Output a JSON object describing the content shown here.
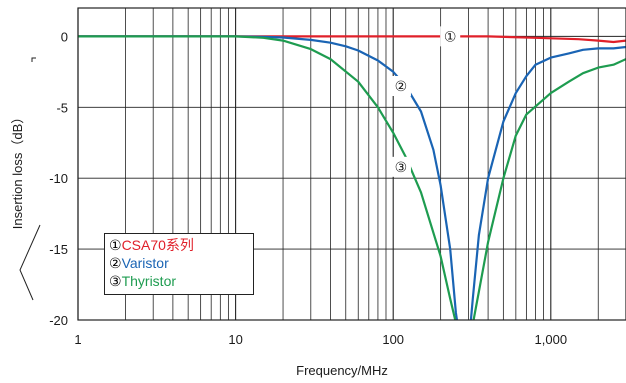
{
  "chart_data": {
    "type": "line",
    "xlabel": "Frequency/MHz",
    "ylabel": "Insertion loss（dB）",
    "xscale": "log",
    "xlim": [
      1,
      3000
    ],
    "ylim": [
      -20,
      2
    ],
    "xticks": [
      {
        "value": 1,
        "label": "1"
      },
      {
        "value": 10,
        "label": "10"
      },
      {
        "value": 100,
        "label": "100"
      },
      {
        "value": 1000,
        "label": "1,000"
      }
    ],
    "yticks": [
      {
        "value": 0,
        "label": "0"
      },
      {
        "value": -5,
        "label": "-5"
      },
      {
        "value": -10,
        "label": "-10"
      },
      {
        "value": -15,
        "label": "-15"
      },
      {
        "value": -20,
        "label": "-20"
      }
    ],
    "grid": true,
    "legend_position": "bottom-left",
    "series": [
      {
        "marker": "①",
        "name": "CSA70系列",
        "color": "#e0202a",
        "x": [
          1,
          10,
          100,
          200,
          400,
          800,
          1500,
          2000,
          2500,
          3000
        ],
        "y": [
          0,
          0,
          0,
          0,
          0,
          -0.1,
          -0.2,
          -0.3,
          -0.4,
          -0.3
        ]
      },
      {
        "marker": "②",
        "name": "Varistor",
        "color": "#1a64b4",
        "x": [
          1,
          10,
          15,
          20,
          30,
          40,
          50,
          60,
          80,
          100,
          120,
          150,
          180,
          200,
          230,
          250,
          270,
          300,
          320,
          350,
          400,
          500,
          600,
          700,
          800,
          1000,
          1300,
          1600,
          2000,
          2500,
          3000
        ],
        "y": [
          0,
          0,
          -0.03,
          -0.08,
          -0.25,
          -0.45,
          -0.7,
          -1.0,
          -1.7,
          -2.5,
          -3.5,
          -5.3,
          -8.0,
          -10.5,
          -15.0,
          -19.5,
          -22,
          -22,
          -18.5,
          -14.0,
          -10.0,
          -6.0,
          -4.0,
          -2.8,
          -2.0,
          -1.5,
          -1.2,
          -0.95,
          -0.85,
          -0.85,
          -0.75
        ]
      },
      {
        "marker": "③",
        "name": "Thyristor",
        "color": "#1e9c50",
        "x": [
          1,
          10,
          15,
          20,
          30,
          40,
          60,
          80,
          100,
          120,
          150,
          200,
          230,
          260,
          280,
          300,
          330,
          350,
          400,
          500,
          600,
          700,
          1000,
          1300,
          1600,
          2000,
          2500,
          3000
        ],
        "y": [
          0,
          0,
          -0.1,
          -0.3,
          -0.9,
          -1.6,
          -3.2,
          -5.0,
          -6.8,
          -8.5,
          -11.0,
          -15.5,
          -18.5,
          -21,
          -22,
          -22,
          -19.5,
          -18.0,
          -14.5,
          -10.0,
          -7.0,
          -5.5,
          -4.0,
          -3.2,
          -2.6,
          -2.2,
          -2.0,
          -1.6
        ]
      }
    ],
    "annotations": [
      {
        "text": "①",
        "x": 230,
        "y": 0
      },
      {
        "text": "②",
        "x": 112,
        "y": -3.5
      },
      {
        "text": "③",
        "x": 112,
        "y": -9.2
      }
    ]
  }
}
